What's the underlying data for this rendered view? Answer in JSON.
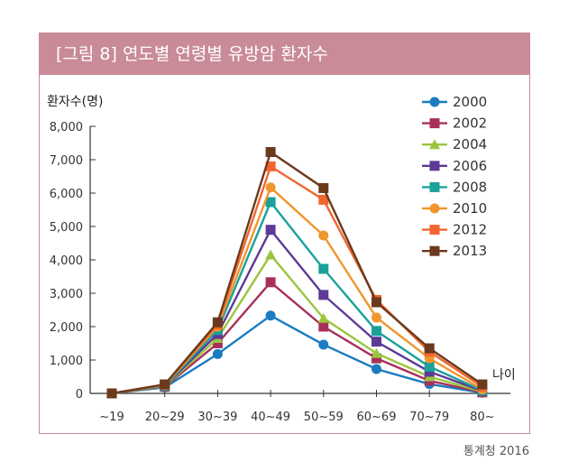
{
  "title": "[그림 8] 연도별 연령별 유방암 환자수",
  "source": "통계청 2016",
  "chart_data": {
    "type": "line",
    "ylabel": "환자수(명)",
    "xlabel": "나이",
    "categories": [
      "~19",
      "20~29",
      "30~39",
      "40~49",
      "50~59",
      "60~69",
      "70~79",
      "80~"
    ],
    "ylim": [
      0,
      8000
    ],
    "yticks": [
      "0",
      "1,000",
      "2,000",
      "3,000",
      "4,000",
      "5,000",
      "6,000",
      "7,000",
      "8,000"
    ],
    "series": [
      {
        "name": "2000",
        "color": "#1a7cc1",
        "marker": "circle",
        "values": [
          0,
          180,
          1180,
          2330,
          1460,
          730,
          280,
          20
        ]
      },
      {
        "name": "2002",
        "color": "#a8305a",
        "marker": "square",
        "values": [
          0,
          200,
          1500,
          3330,
          2000,
          1050,
          380,
          30
        ]
      },
      {
        "name": "2004",
        "color": "#9bc53d",
        "marker": "triangle",
        "values": [
          0,
          210,
          1650,
          4150,
          2250,
          1200,
          500,
          50
        ]
      },
      {
        "name": "2006",
        "color": "#5c3a96",
        "marker": "square",
        "values": [
          0,
          220,
          1780,
          4900,
          2950,
          1550,
          650,
          70
        ]
      },
      {
        "name": "2008",
        "color": "#1aa19a",
        "marker": "square",
        "values": [
          0,
          230,
          1900,
          5730,
          3730,
          1870,
          800,
          90
        ]
      },
      {
        "name": "2010",
        "color": "#f0962e",
        "marker": "circle",
        "values": [
          0,
          250,
          2000,
          6170,
          4730,
          2270,
          1050,
          120
        ]
      },
      {
        "name": "2012",
        "color": "#f2652f",
        "marker": "square",
        "values": [
          0,
          260,
          2070,
          6800,
          5800,
          2800,
          1250,
          200
        ]
      },
      {
        "name": "2013",
        "color": "#6b3a1c",
        "marker": "square",
        "values": [
          0,
          270,
          2130,
          7230,
          6150,
          2730,
          1350,
          270
        ]
      }
    ]
  }
}
